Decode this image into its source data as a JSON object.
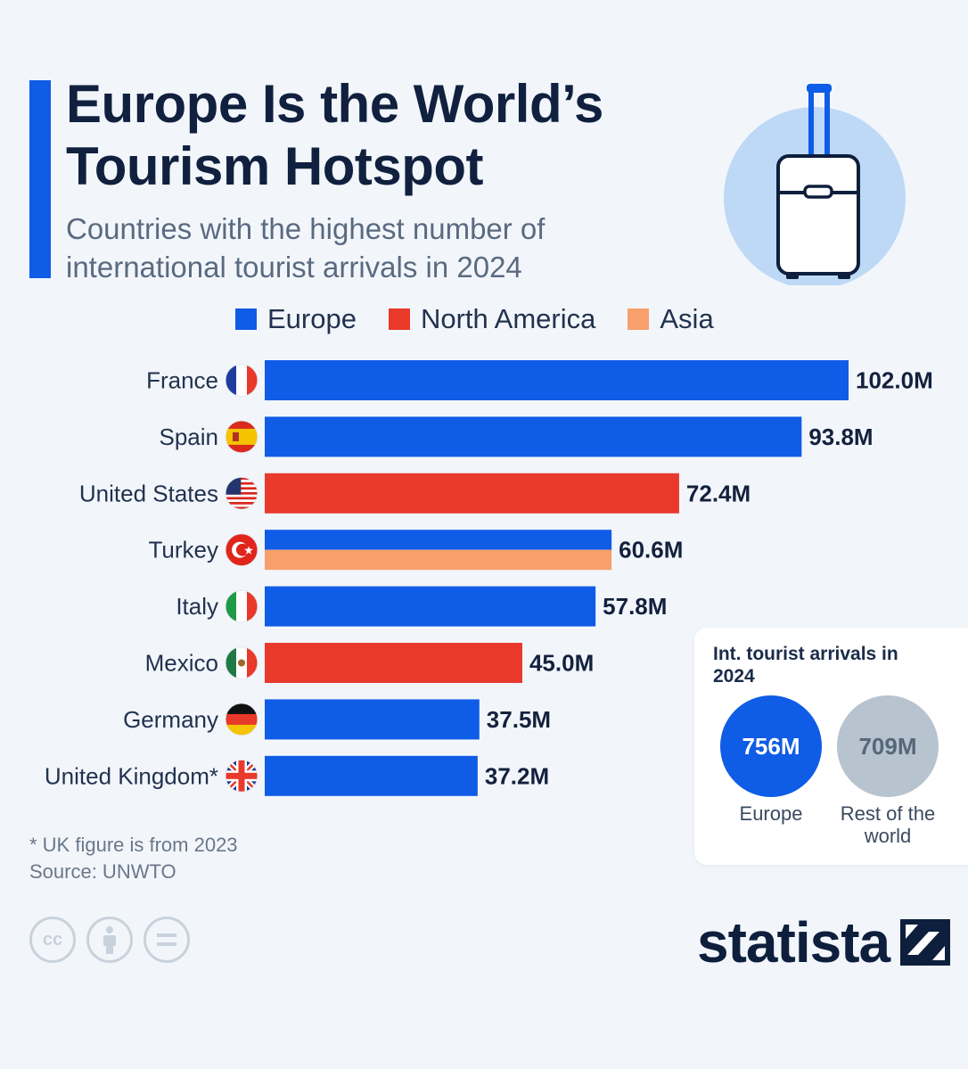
{
  "header": {
    "title": "Europe Is the World’s Tourism Hotspot",
    "subtitle": "Countries with the highest number of international tourist arrivals in 2024"
  },
  "colors": {
    "europe": "#0f5ce6",
    "north_america": "#e8392b",
    "asia": "#f7a06c",
    "accent": "#0f5ce6"
  },
  "legend": {
    "europe": "Europe",
    "north_america": "North America",
    "asia": "Asia"
  },
  "chart_data": {
    "type": "bar",
    "orientation": "horizontal",
    "unit": "M",
    "categories": [
      "France",
      "Spain",
      "United States",
      "Turkey",
      "Italy",
      "Mexico",
      "Germany",
      "United Kingdom*"
    ],
    "flags": [
      "france-flag-icon",
      "spain-flag-icon",
      "usa-flag-icon",
      "turkey-flag-icon",
      "italy-flag-icon",
      "mexico-flag-icon",
      "germany-flag-icon",
      "uk-flag-icon"
    ],
    "values": [
      102.0,
      93.8,
      72.4,
      60.6,
      57.8,
      45.0,
      37.5,
      37.2
    ],
    "value_labels": [
      "102.0M",
      "93.8M",
      "72.4M",
      "60.6M",
      "57.8M",
      "45.0M",
      "37.5M",
      "37.2M"
    ],
    "regions": [
      [
        "europe"
      ],
      [
        "europe"
      ],
      [
        "north_america"
      ],
      [
        "europe",
        "asia"
      ],
      [
        "europe"
      ],
      [
        "north_america"
      ],
      [
        "europe"
      ],
      [
        "europe"
      ]
    ],
    "xlim": [
      0,
      102.0
    ],
    "grid": false,
    "legend_position": "top"
  },
  "callout": {
    "title": "Int. tourist arrivals in 2024",
    "europe_value": "756M",
    "europe_label": "Europe",
    "rest_value": "709M",
    "rest_label": "Rest of the world"
  },
  "footer": {
    "footnote": "* UK figure is from 2023",
    "source": "Source: UNWTO",
    "brand": "statista"
  }
}
